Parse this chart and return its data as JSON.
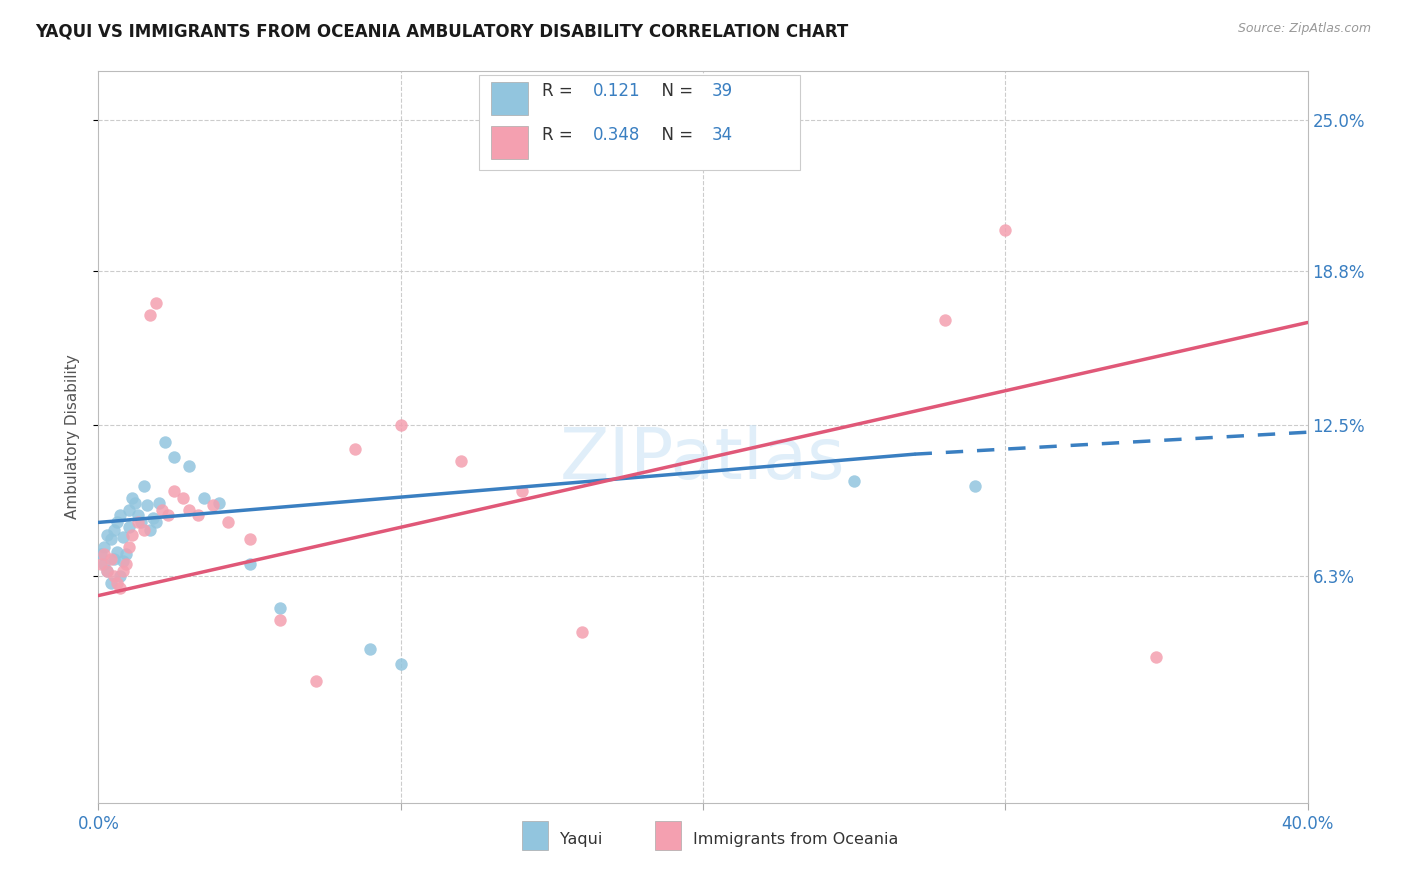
{
  "title": "YAQUI VS IMMIGRANTS FROM OCEANIA AMBULATORY DISABILITY CORRELATION CHART",
  "source": "Source: ZipAtlas.com",
  "ylabel": "Ambulatory Disability",
  "ytick_labels": [
    "6.3%",
    "12.5%",
    "18.8%",
    "25.0%"
  ],
  "ytick_values": [
    0.063,
    0.125,
    0.188,
    0.25
  ],
  "xtick_show": [
    0.0,
    0.4
  ],
  "xtick_labels_show": [
    "0.0%",
    "40.0%"
  ],
  "xmin": 0.0,
  "xmax": 0.4,
  "ymin": -0.03,
  "ymax": 0.27,
  "legend_label1": "Yaqui",
  "legend_label2": "Immigrants from Oceania",
  "R1": "0.121",
  "N1": "39",
  "R2": "0.348",
  "N2": "34",
  "color_blue": "#92c5de",
  "color_pink": "#f4a0b0",
  "color_blue_line": "#3a7fc1",
  "color_pink_line": "#e05878",
  "color_text": "#3a7fc1",
  "watermark_color": "#cce4f5",
  "yaqui_x": [
    0.001,
    0.002,
    0.002,
    0.003,
    0.003,
    0.004,
    0.004,
    0.005,
    0.005,
    0.006,
    0.006,
    0.007,
    0.007,
    0.008,
    0.008,
    0.009,
    0.01,
    0.01,
    0.011,
    0.012,
    0.013,
    0.014,
    0.015,
    0.016,
    0.017,
    0.018,
    0.019,
    0.02,
    0.022,
    0.025,
    0.03,
    0.035,
    0.04,
    0.05,
    0.06,
    0.09,
    0.1,
    0.25,
    0.29
  ],
  "yaqui_y": [
    0.072,
    0.075,
    0.068,
    0.08,
    0.065,
    0.078,
    0.06,
    0.082,
    0.07,
    0.085,
    0.073,
    0.088,
    0.063,
    0.079,
    0.069,
    0.072,
    0.09,
    0.083,
    0.095,
    0.093,
    0.088,
    0.085,
    0.1,
    0.092,
    0.082,
    0.087,
    0.085,
    0.093,
    0.118,
    0.112,
    0.108,
    0.095,
    0.093,
    0.068,
    0.05,
    0.033,
    0.027,
    0.102,
    0.1
  ],
  "oceania_x": [
    0.001,
    0.002,
    0.003,
    0.004,
    0.005,
    0.006,
    0.007,
    0.008,
    0.009,
    0.01,
    0.011,
    0.013,
    0.015,
    0.017,
    0.019,
    0.021,
    0.023,
    0.025,
    0.028,
    0.03,
    0.033,
    0.038,
    0.043,
    0.05,
    0.06,
    0.072,
    0.085,
    0.1,
    0.12,
    0.14,
    0.16,
    0.28,
    0.3,
    0.35
  ],
  "oceania_y": [
    0.068,
    0.072,
    0.065,
    0.07,
    0.063,
    0.06,
    0.058,
    0.065,
    0.068,
    0.075,
    0.08,
    0.085,
    0.082,
    0.17,
    0.175,
    0.09,
    0.088,
    0.098,
    0.095,
    0.09,
    0.088,
    0.092,
    0.085,
    0.078,
    0.045,
    0.02,
    0.115,
    0.125,
    0.11,
    0.098,
    0.04,
    0.168,
    0.205,
    0.03
  ]
}
